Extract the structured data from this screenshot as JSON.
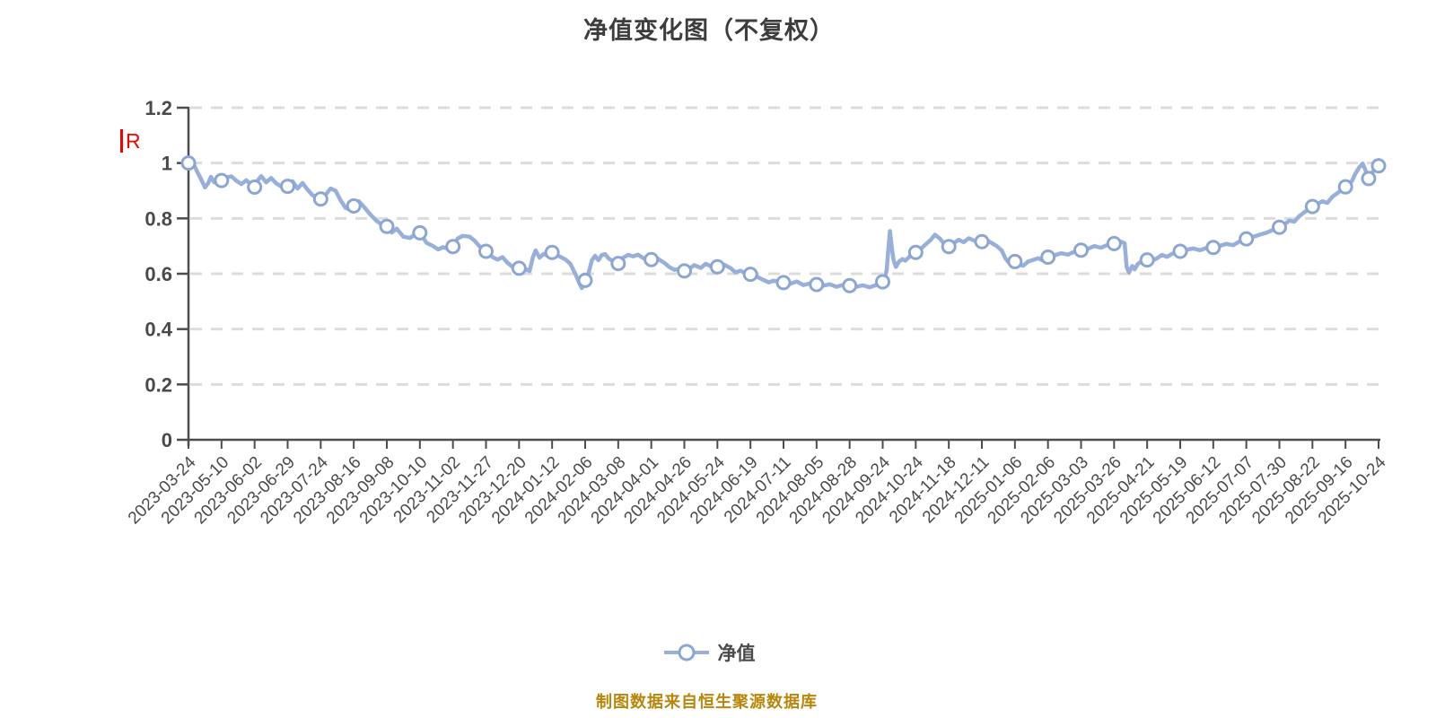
{
  "chart": {
    "title": "净值变化图（不复权）"
  },
  "annotation": {
    "label": "R",
    "color": "#f50000"
  },
  "legend": {
    "label": "净值"
  },
  "footer": {
    "text": "制图数据来自恒生聚源数据库",
    "color": "#b8860b"
  },
  "chart_data": {
    "type": "line",
    "title": "净值变化图（不复权）",
    "series_name": "净值",
    "xlabel": "",
    "ylabel": "",
    "ylim": [
      0,
      1.2
    ],
    "y_ticks": [
      0,
      0.2,
      0.4,
      0.6,
      0.8,
      1,
      1.2
    ],
    "y_tick_labels": [
      "0",
      "0.2",
      "0.4",
      "0.6",
      "0.8",
      "1",
      "1.2"
    ],
    "grid": "horizontal-dashed",
    "legend_position": "bottom-center",
    "x_tick_labels": [
      "2023-03-24",
      "2023-05-10",
      "2023-06-02",
      "2023-06-29",
      "2023-07-24",
      "2023-08-16",
      "2023-09-08",
      "2023-10-10",
      "2023-11-02",
      "2023-11-27",
      "2023-12-20",
      "2024-01-12",
      "2024-02-06",
      "2024-03-08",
      "2024-04-01",
      "2024-04-26",
      "2024-05-24",
      "2024-06-19",
      "2024-07-11",
      "2024-08-05",
      "2024-08-28",
      "2024-09-24",
      "2024-10-24",
      "2024-11-18",
      "2024-12-11",
      "2025-01-06",
      "2025-02-06",
      "2025-03-03",
      "2025-03-26",
      "2025-04-21",
      "2025-05-19",
      "2025-06-12",
      "2025-07-07",
      "2025-07-30",
      "2025-08-22",
      "2025-09-16",
      "2025-10-24"
    ],
    "marker_values_at_ticks": [
      1.0,
      0.937,
      0.913,
      0.916,
      0.87,
      0.845,
      0.771,
      0.748,
      0.698,
      0.681,
      0.62,
      0.677,
      0.576,
      0.637,
      0.651,
      0.61,
      0.625,
      0.598,
      0.568,
      0.561,
      0.557,
      0.571,
      0.677,
      0.698,
      0.716,
      0.644,
      0.66,
      0.685,
      0.709,
      0.65,
      0.681,
      0.695,
      0.726,
      0.768,
      0.843,
      0.914,
      0.99
    ],
    "extra_markers": [
      {
        "t": 35.7,
        "value": 0.944
      }
    ],
    "dense_line": [
      [
        0,
        1.0
      ],
      [
        0.08,
        0.999
      ],
      [
        0.18,
        0.99
      ],
      [
        0.28,
        0.965
      ],
      [
        0.38,
        0.942
      ],
      [
        0.5,
        0.912
      ],
      [
        0.6,
        0.928
      ],
      [
        0.68,
        0.95
      ],
      [
        0.78,
        0.93
      ],
      [
        0.9,
        0.942
      ],
      [
        1,
        0.937
      ],
      [
        1.15,
        0.948
      ],
      [
        1.3,
        0.952
      ],
      [
        1.45,
        0.936
      ],
      [
        1.6,
        0.924
      ],
      [
        1.75,
        0.938
      ],
      [
        1.9,
        0.92
      ],
      [
        2,
        0.913
      ],
      [
        2.1,
        0.938
      ],
      [
        2.2,
        0.953
      ],
      [
        2.35,
        0.93
      ],
      [
        2.5,
        0.946
      ],
      [
        2.65,
        0.927
      ],
      [
        2.8,
        0.916
      ],
      [
        2.9,
        0.92
      ],
      [
        3,
        0.916
      ],
      [
        3.15,
        0.934
      ],
      [
        3.3,
        0.908
      ],
      [
        3.45,
        0.928
      ],
      [
        3.6,
        0.904
      ],
      [
        3.75,
        0.884
      ],
      [
        3.9,
        0.876
      ],
      [
        4,
        0.87
      ],
      [
        4.15,
        0.886
      ],
      [
        4.3,
        0.908
      ],
      [
        4.45,
        0.9
      ],
      [
        4.6,
        0.866
      ],
      [
        4.75,
        0.838
      ],
      [
        4.88,
        0.832
      ],
      [
        5,
        0.845
      ],
      [
        5.15,
        0.862
      ],
      [
        5.3,
        0.843
      ],
      [
        5.5,
        0.814
      ],
      [
        5.7,
        0.79
      ],
      [
        5.85,
        0.778
      ],
      [
        6,
        0.771
      ],
      [
        6.15,
        0.749
      ],
      [
        6.3,
        0.763
      ],
      [
        6.5,
        0.734
      ],
      [
        6.7,
        0.729
      ],
      [
        6.85,
        0.742
      ],
      [
        7,
        0.748
      ],
      [
        7.2,
        0.712
      ],
      [
        7.4,
        0.7
      ],
      [
        7.55,
        0.688
      ],
      [
        7.7,
        0.696
      ],
      [
        7.85,
        0.69
      ],
      [
        8,
        0.698
      ],
      [
        8.15,
        0.728
      ],
      [
        8.3,
        0.737
      ],
      [
        8.5,
        0.734
      ],
      [
        8.65,
        0.72
      ],
      [
        8.8,
        0.7
      ],
      [
        8.95,
        0.686
      ],
      [
        9,
        0.681
      ],
      [
        9.2,
        0.66
      ],
      [
        9.35,
        0.651
      ],
      [
        9.5,
        0.66
      ],
      [
        9.65,
        0.64
      ],
      [
        9.8,
        0.625
      ],
      [
        9.92,
        0.614
      ],
      [
        10,
        0.62
      ],
      [
        10.12,
        0.612
      ],
      [
        10.25,
        0.615
      ],
      [
        10.32,
        0.61
      ],
      [
        10.42,
        0.66
      ],
      [
        10.5,
        0.684
      ],
      [
        10.62,
        0.658
      ],
      [
        10.75,
        0.672
      ],
      [
        10.88,
        0.664
      ],
      [
        11,
        0.677
      ],
      [
        11.2,
        0.664
      ],
      [
        11.4,
        0.652
      ],
      [
        11.55,
        0.636
      ],
      [
        11.7,
        0.6
      ],
      [
        11.83,
        0.565
      ],
      [
        11.9,
        0.548
      ],
      [
        12,
        0.576
      ],
      [
        12.1,
        0.601
      ],
      [
        12.2,
        0.648
      ],
      [
        12.3,
        0.665
      ],
      [
        12.4,
        0.649
      ],
      [
        12.5,
        0.667
      ],
      [
        12.6,
        0.671
      ],
      [
        12.72,
        0.654
      ],
      [
        12.85,
        0.645
      ],
      [
        13,
        0.637
      ],
      [
        13.15,
        0.658
      ],
      [
        13.3,
        0.668
      ],
      [
        13.45,
        0.663
      ],
      [
        13.6,
        0.669
      ],
      [
        13.75,
        0.657
      ],
      [
        13.9,
        0.647
      ],
      [
        14,
        0.651
      ],
      [
        14.2,
        0.654
      ],
      [
        14.4,
        0.639
      ],
      [
        14.55,
        0.624
      ],
      [
        14.7,
        0.614
      ],
      [
        14.85,
        0.618
      ],
      [
        15,
        0.61
      ],
      [
        15.15,
        0.618
      ],
      [
        15.3,
        0.631
      ],
      [
        15.5,
        0.621
      ],
      [
        15.65,
        0.636
      ],
      [
        15.8,
        0.627
      ],
      [
        16,
        0.625
      ],
      [
        16.2,
        0.633
      ],
      [
        16.4,
        0.62
      ],
      [
        16.55,
        0.605
      ],
      [
        16.7,
        0.611
      ],
      [
        16.85,
        0.601
      ],
      [
        17,
        0.598
      ],
      [
        17.2,
        0.589
      ],
      [
        17.4,
        0.577
      ],
      [
        17.55,
        0.569
      ],
      [
        17.7,
        0.575
      ],
      [
        17.85,
        0.571
      ],
      [
        18,
        0.568
      ],
      [
        18.2,
        0.564
      ],
      [
        18.4,
        0.572
      ],
      [
        18.6,
        0.559
      ],
      [
        18.8,
        0.565
      ],
      [
        19,
        0.561
      ],
      [
        19.2,
        0.557
      ],
      [
        19.4,
        0.562
      ],
      [
        19.6,
        0.553
      ],
      [
        19.8,
        0.559
      ],
      [
        20,
        0.557
      ],
      [
        20.2,
        0.553
      ],
      [
        20.4,
        0.558
      ],
      [
        20.6,
        0.551
      ],
      [
        20.8,
        0.559
      ],
      [
        20.92,
        0.567
      ],
      [
        21,
        0.571
      ],
      [
        21.05,
        0.578
      ],
      [
        21.12,
        0.612
      ],
      [
        21.18,
        0.7
      ],
      [
        21.22,
        0.754
      ],
      [
        21.28,
        0.69
      ],
      [
        21.33,
        0.648
      ],
      [
        21.4,
        0.625
      ],
      [
        21.5,
        0.645
      ],
      [
        21.6,
        0.653
      ],
      [
        21.68,
        0.647
      ],
      [
        21.78,
        0.658
      ],
      [
        21.88,
        0.67
      ],
      [
        22,
        0.677
      ],
      [
        22.15,
        0.69
      ],
      [
        22.3,
        0.706
      ],
      [
        22.45,
        0.722
      ],
      [
        22.58,
        0.741
      ],
      [
        22.72,
        0.728
      ],
      [
        22.88,
        0.706
      ],
      [
        23,
        0.698
      ],
      [
        23.15,
        0.71
      ],
      [
        23.3,
        0.723
      ],
      [
        23.45,
        0.714
      ],
      [
        23.6,
        0.728
      ],
      [
        23.75,
        0.721
      ],
      [
        23.9,
        0.711
      ],
      [
        24,
        0.716
      ],
      [
        24.15,
        0.721
      ],
      [
        24.3,
        0.711
      ],
      [
        24.45,
        0.7
      ],
      [
        24.6,
        0.684
      ],
      [
        24.72,
        0.654
      ],
      [
        24.82,
        0.64
      ],
      [
        24.92,
        0.637
      ],
      [
        25,
        0.644
      ],
      [
        25.1,
        0.634
      ],
      [
        25.25,
        0.629
      ],
      [
        25.4,
        0.644
      ],
      [
        25.55,
        0.65
      ],
      [
        25.7,
        0.656
      ],
      [
        25.85,
        0.648
      ],
      [
        26,
        0.66
      ],
      [
        26.2,
        0.667
      ],
      [
        26.4,
        0.674
      ],
      [
        26.6,
        0.669
      ],
      [
        26.8,
        0.679
      ],
      [
        27,
        0.685
      ],
      [
        27.2,
        0.69
      ],
      [
        27.4,
        0.7
      ],
      [
        27.6,
        0.694
      ],
      [
        27.8,
        0.704
      ],
      [
        28,
        0.709
      ],
      [
        28.1,
        0.712
      ],
      [
        28.22,
        0.715
      ],
      [
        28.32,
        0.71
      ],
      [
        28.38,
        0.625
      ],
      [
        28.45,
        0.605
      ],
      [
        28.55,
        0.628
      ],
      [
        28.62,
        0.616
      ],
      [
        28.72,
        0.636
      ],
      [
        28.82,
        0.643
      ],
      [
        28.9,
        0.638
      ],
      [
        29,
        0.65
      ],
      [
        29.15,
        0.647
      ],
      [
        29.3,
        0.656
      ],
      [
        29.45,
        0.668
      ],
      [
        29.6,
        0.661
      ],
      [
        29.75,
        0.672
      ],
      [
        29.9,
        0.677
      ],
      [
        30,
        0.681
      ],
      [
        30.2,
        0.687
      ],
      [
        30.4,
        0.691
      ],
      [
        30.6,
        0.685
      ],
      [
        30.8,
        0.693
      ],
      [
        31,
        0.695
      ],
      [
        31.2,
        0.701
      ],
      [
        31.4,
        0.708
      ],
      [
        31.6,
        0.703
      ],
      [
        31.8,
        0.717
      ],
      [
        32,
        0.726
      ],
      [
        32.2,
        0.733
      ],
      [
        32.4,
        0.741
      ],
      [
        32.6,
        0.748
      ],
      [
        32.8,
        0.758
      ],
      [
        33,
        0.768
      ],
      [
        33.15,
        0.778
      ],
      [
        33.3,
        0.792
      ],
      [
        33.45,
        0.788
      ],
      [
        33.6,
        0.808
      ],
      [
        33.75,
        0.822
      ],
      [
        33.9,
        0.834
      ],
      [
        34,
        0.843
      ],
      [
        34.15,
        0.852
      ],
      [
        34.3,
        0.862
      ],
      [
        34.45,
        0.856
      ],
      [
        34.6,
        0.878
      ],
      [
        34.75,
        0.891
      ],
      [
        34.9,
        0.905
      ],
      [
        35,
        0.914
      ],
      [
        35.1,
        0.921
      ],
      [
        35.2,
        0.936
      ],
      [
        35.3,
        0.962
      ],
      [
        35.42,
        0.985
      ],
      [
        35.52,
        0.998
      ],
      [
        35.6,
        0.975
      ],
      [
        35.7,
        0.944
      ],
      [
        35.8,
        0.962
      ],
      [
        35.9,
        0.984
      ],
      [
        36,
        0.99
      ]
    ],
    "colors": {
      "line": "#97AFD9",
      "marker_fill": "#ffffff",
      "marker_stroke": "#8CA6D4",
      "axis": "#4d4d4d",
      "grid": "#dcdcdc",
      "tick_text": "#4a4a4a",
      "title_text": "#3d3d3d",
      "footer_text": "#b8860b",
      "annotation": "#f50000"
    }
  }
}
